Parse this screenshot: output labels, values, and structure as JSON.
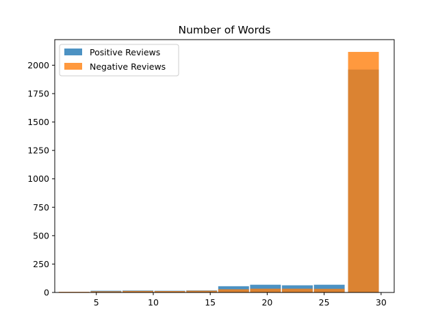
{
  "chart_data": {
    "type": "bar",
    "title": "Number of Words",
    "xlabel": "",
    "ylabel": "",
    "xlim": [
      1.35,
      31.15
    ],
    "ylim": [
      0,
      2225
    ],
    "xticks": [
      5,
      10,
      15,
      20,
      25,
      30
    ],
    "yticks": [
      0,
      250,
      500,
      750,
      1000,
      1250,
      1500,
      1750,
      2000
    ],
    "bins": [
      [
        1.7,
        4.4
      ],
      [
        4.5,
        7.2
      ],
      [
        7.3,
        10.0
      ],
      [
        10.1,
        12.8
      ],
      [
        12.9,
        15.6
      ],
      [
        15.7,
        18.4
      ],
      [
        18.5,
        21.2
      ],
      [
        21.3,
        24.0
      ],
      [
        24.1,
        26.8
      ],
      [
        27.1,
        29.8
      ]
    ],
    "series": [
      {
        "name": "Positive Reviews",
        "color": "#1f77b4",
        "values": [
          4,
          15,
          17,
          15,
          18,
          55,
          68,
          63,
          68,
          1962
        ]
      },
      {
        "name": "Negative Reviews",
        "color": "#ff7f0e",
        "values": [
          6,
          10,
          13,
          12,
          15,
          28,
          33,
          33,
          32,
          2117
        ]
      }
    ],
    "overlap_color": "#c38561",
    "alpha": 0.8,
    "legend_position": "upper-left",
    "grid": false
  }
}
